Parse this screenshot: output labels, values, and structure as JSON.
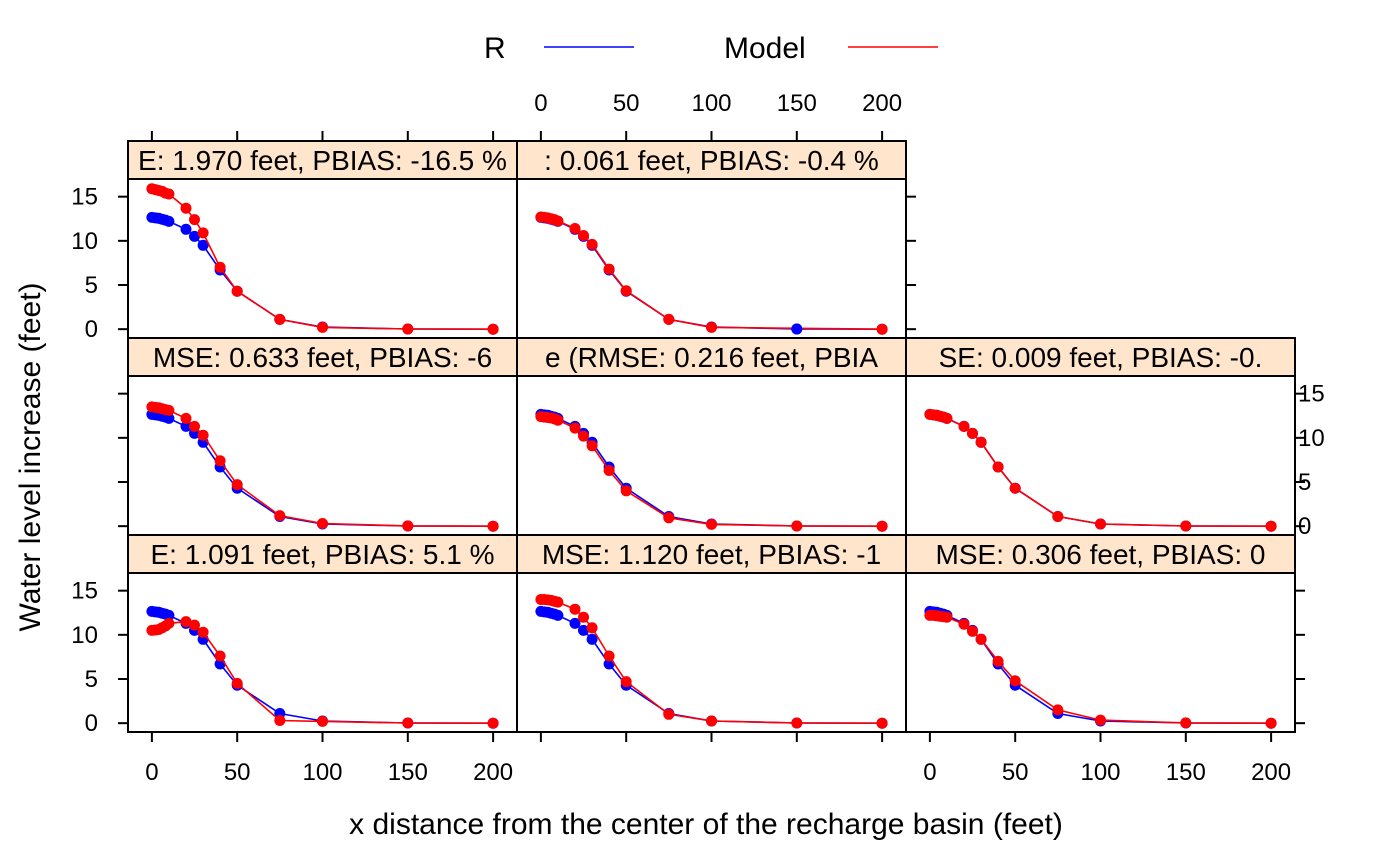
{
  "chart_data": {
    "type": "line",
    "layout": "trellis-3-rows",
    "xlabel": "x distance from the center of the recharge basin (feet)",
    "ylabel": "Water level increase (feet)",
    "xlim": [
      -14,
      214
    ],
    "ylim": [
      -1,
      17
    ],
    "x_ticks": [
      0,
      50,
      100,
      150,
      200
    ],
    "y_ticks": [
      0,
      5,
      10,
      15
    ],
    "grid": false,
    "legend": {
      "placement": "top",
      "entries": [
        {
          "name": "R",
          "color": "#0000ff"
        },
        {
          "name": "Model",
          "color": "#ff0000"
        }
      ]
    },
    "x": [
      0,
      2,
      4,
      6,
      8,
      10,
      20,
      25,
      30,
      40,
      50,
      75,
      100,
      150,
      200
    ],
    "reference": [
      12.65,
      12.6,
      12.55,
      12.45,
      12.35,
      12.2,
      11.3,
      10.5,
      9.5,
      6.7,
      4.3,
      1.1,
      0.25,
      0.02,
      0.0
    ],
    "panels": [
      {
        "label": "E: 1.970 feet, PBIAS: -16.5 %",
        "series": [
          {
            "name": "R",
            "color": "#0000ff",
            "values": [
              12.65,
              12.6,
              12.55,
              12.45,
              12.35,
              12.2,
              11.3,
              10.5,
              9.5,
              6.7,
              4.3,
              1.1,
              0.25,
              0.02,
              0.0
            ]
          },
          {
            "name": "Model",
            "color": "#ff0000",
            "values": [
              15.9,
              15.8,
              15.7,
              15.6,
              15.4,
              15.3,
              13.7,
              12.4,
              10.9,
              7.0,
              4.3,
              1.1,
              0.2,
              0.02,
              0.0
            ]
          }
        ]
      },
      {
        "label": ": 0.061 feet, PBIAS: -0.4 %",
        "series": [
          {
            "name": "R",
            "color": "#0000ff",
            "values": [
              12.65,
              12.6,
              12.55,
              12.45,
              12.35,
              12.2,
              11.3,
              10.5,
              9.5,
              6.7,
              4.3,
              1.1,
              0.25,
              0.02,
              0.0
            ]
          },
          {
            "name": "Model",
            "color": "#ff0000",
            "values": [
              12.7,
              12.65,
              12.6,
              12.5,
              12.4,
              12.25,
              11.4,
              10.6,
              9.6,
              6.8,
              4.35,
              1.1,
              0.2,
              null,
              0.0
            ]
          }
        ]
      },
      {
        "label": "MSE: 0.633 feet, PBIAS: -6",
        "series": [
          {
            "name": "R",
            "color": "#0000ff",
            "values": [
              12.65,
              12.6,
              12.55,
              12.45,
              12.35,
              12.2,
              11.3,
              10.5,
              9.5,
              6.7,
              4.3,
              1.1,
              0.25,
              0.02,
              0.0
            ]
          },
          {
            "name": "Model",
            "color": "#ff0000",
            "values": [
              13.5,
              13.45,
              13.4,
              13.3,
              13.2,
              13.1,
              12.2,
              11.3,
              10.3,
              7.4,
              4.7,
              1.2,
              0.3,
              0.03,
              0.0
            ]
          }
        ]
      },
      {
        "label": "e (RMSE: 0.216 feet, PBIA",
        "series": [
          {
            "name": "R",
            "color": "#0000ff",
            "values": [
              12.65,
              12.6,
              12.55,
              12.45,
              12.35,
              12.2,
              11.3,
              10.5,
              9.5,
              6.7,
              4.3,
              1.1,
              0.25,
              0.02,
              0.0
            ]
          },
          {
            "name": "Model",
            "color": "#ff0000",
            "values": [
              12.4,
              12.35,
              12.3,
              12.25,
              12.15,
              12.0,
              11.1,
              10.2,
              9.1,
              6.3,
              4.0,
              0.95,
              0.2,
              0.02,
              0.0
            ]
          }
        ]
      },
      {
        "label": "SE: 0.009 feet, PBIAS: -0.",
        "series": [
          {
            "name": "R",
            "color": "#0000ff",
            "values": [
              12.65,
              12.6,
              12.55,
              12.45,
              12.35,
              12.2,
              11.3,
              10.5,
              9.5,
              6.7,
              4.3,
              1.1,
              0.25,
              0.02,
              0.0
            ]
          },
          {
            "name": "Model",
            "color": "#ff0000",
            "values": [
              12.65,
              12.6,
              12.55,
              12.45,
              12.35,
              12.2,
              11.3,
              10.5,
              9.5,
              6.7,
              4.3,
              1.1,
              0.25,
              0.02,
              0.0
            ]
          }
        ]
      },
      {
        "label": "E: 1.091 feet, PBIAS: 5.1 %",
        "series": [
          {
            "name": "R",
            "color": "#0000ff",
            "values": [
              12.65,
              12.6,
              12.55,
              12.45,
              12.35,
              12.2,
              11.3,
              10.5,
              9.5,
              6.7,
              4.3,
              1.1,
              0.25,
              0.02,
              0.0
            ]
          },
          {
            "name": "Model",
            "color": "#ff0000",
            "values": [
              10.5,
              10.55,
              10.6,
              10.8,
              11.0,
              11.3,
              11.5,
              11.1,
              10.3,
              7.6,
              4.5,
              0.3,
              0.2,
              0.02,
              0.0
            ]
          }
        ]
      },
      {
        "label": "MSE: 1.120 feet, PBIAS: -1",
        "series": [
          {
            "name": "R",
            "color": "#0000ff",
            "values": [
              12.65,
              12.6,
              12.55,
              12.45,
              12.35,
              12.2,
              11.3,
              10.5,
              9.5,
              6.7,
              4.3,
              1.1,
              0.25,
              0.02,
              0.0
            ]
          },
          {
            "name": "Model",
            "color": "#ff0000",
            "values": [
              14.0,
              14.0,
              13.95,
              13.9,
              13.8,
              13.7,
              12.9,
              12.0,
              10.8,
              7.6,
              4.7,
              1.0,
              0.25,
              0.02,
              0.0
            ]
          }
        ]
      },
      {
        "label": "MSE: 0.306 feet, PBIAS: 0",
        "series": [
          {
            "name": "R",
            "color": "#0000ff",
            "values": [
              12.65,
              12.6,
              12.55,
              12.45,
              12.35,
              12.2,
              11.3,
              10.5,
              9.5,
              6.7,
              4.3,
              1.1,
              0.25,
              0.02,
              0.0
            ]
          },
          {
            "name": "Model",
            "color": "#ff0000",
            "values": [
              12.2,
              12.2,
              12.15,
              12.1,
              12.05,
              12.0,
              11.2,
              10.4,
              9.5,
              7.0,
              4.8,
              1.5,
              0.35,
              0.03,
              0.0
            ]
          }
        ]
      }
    ]
  }
}
